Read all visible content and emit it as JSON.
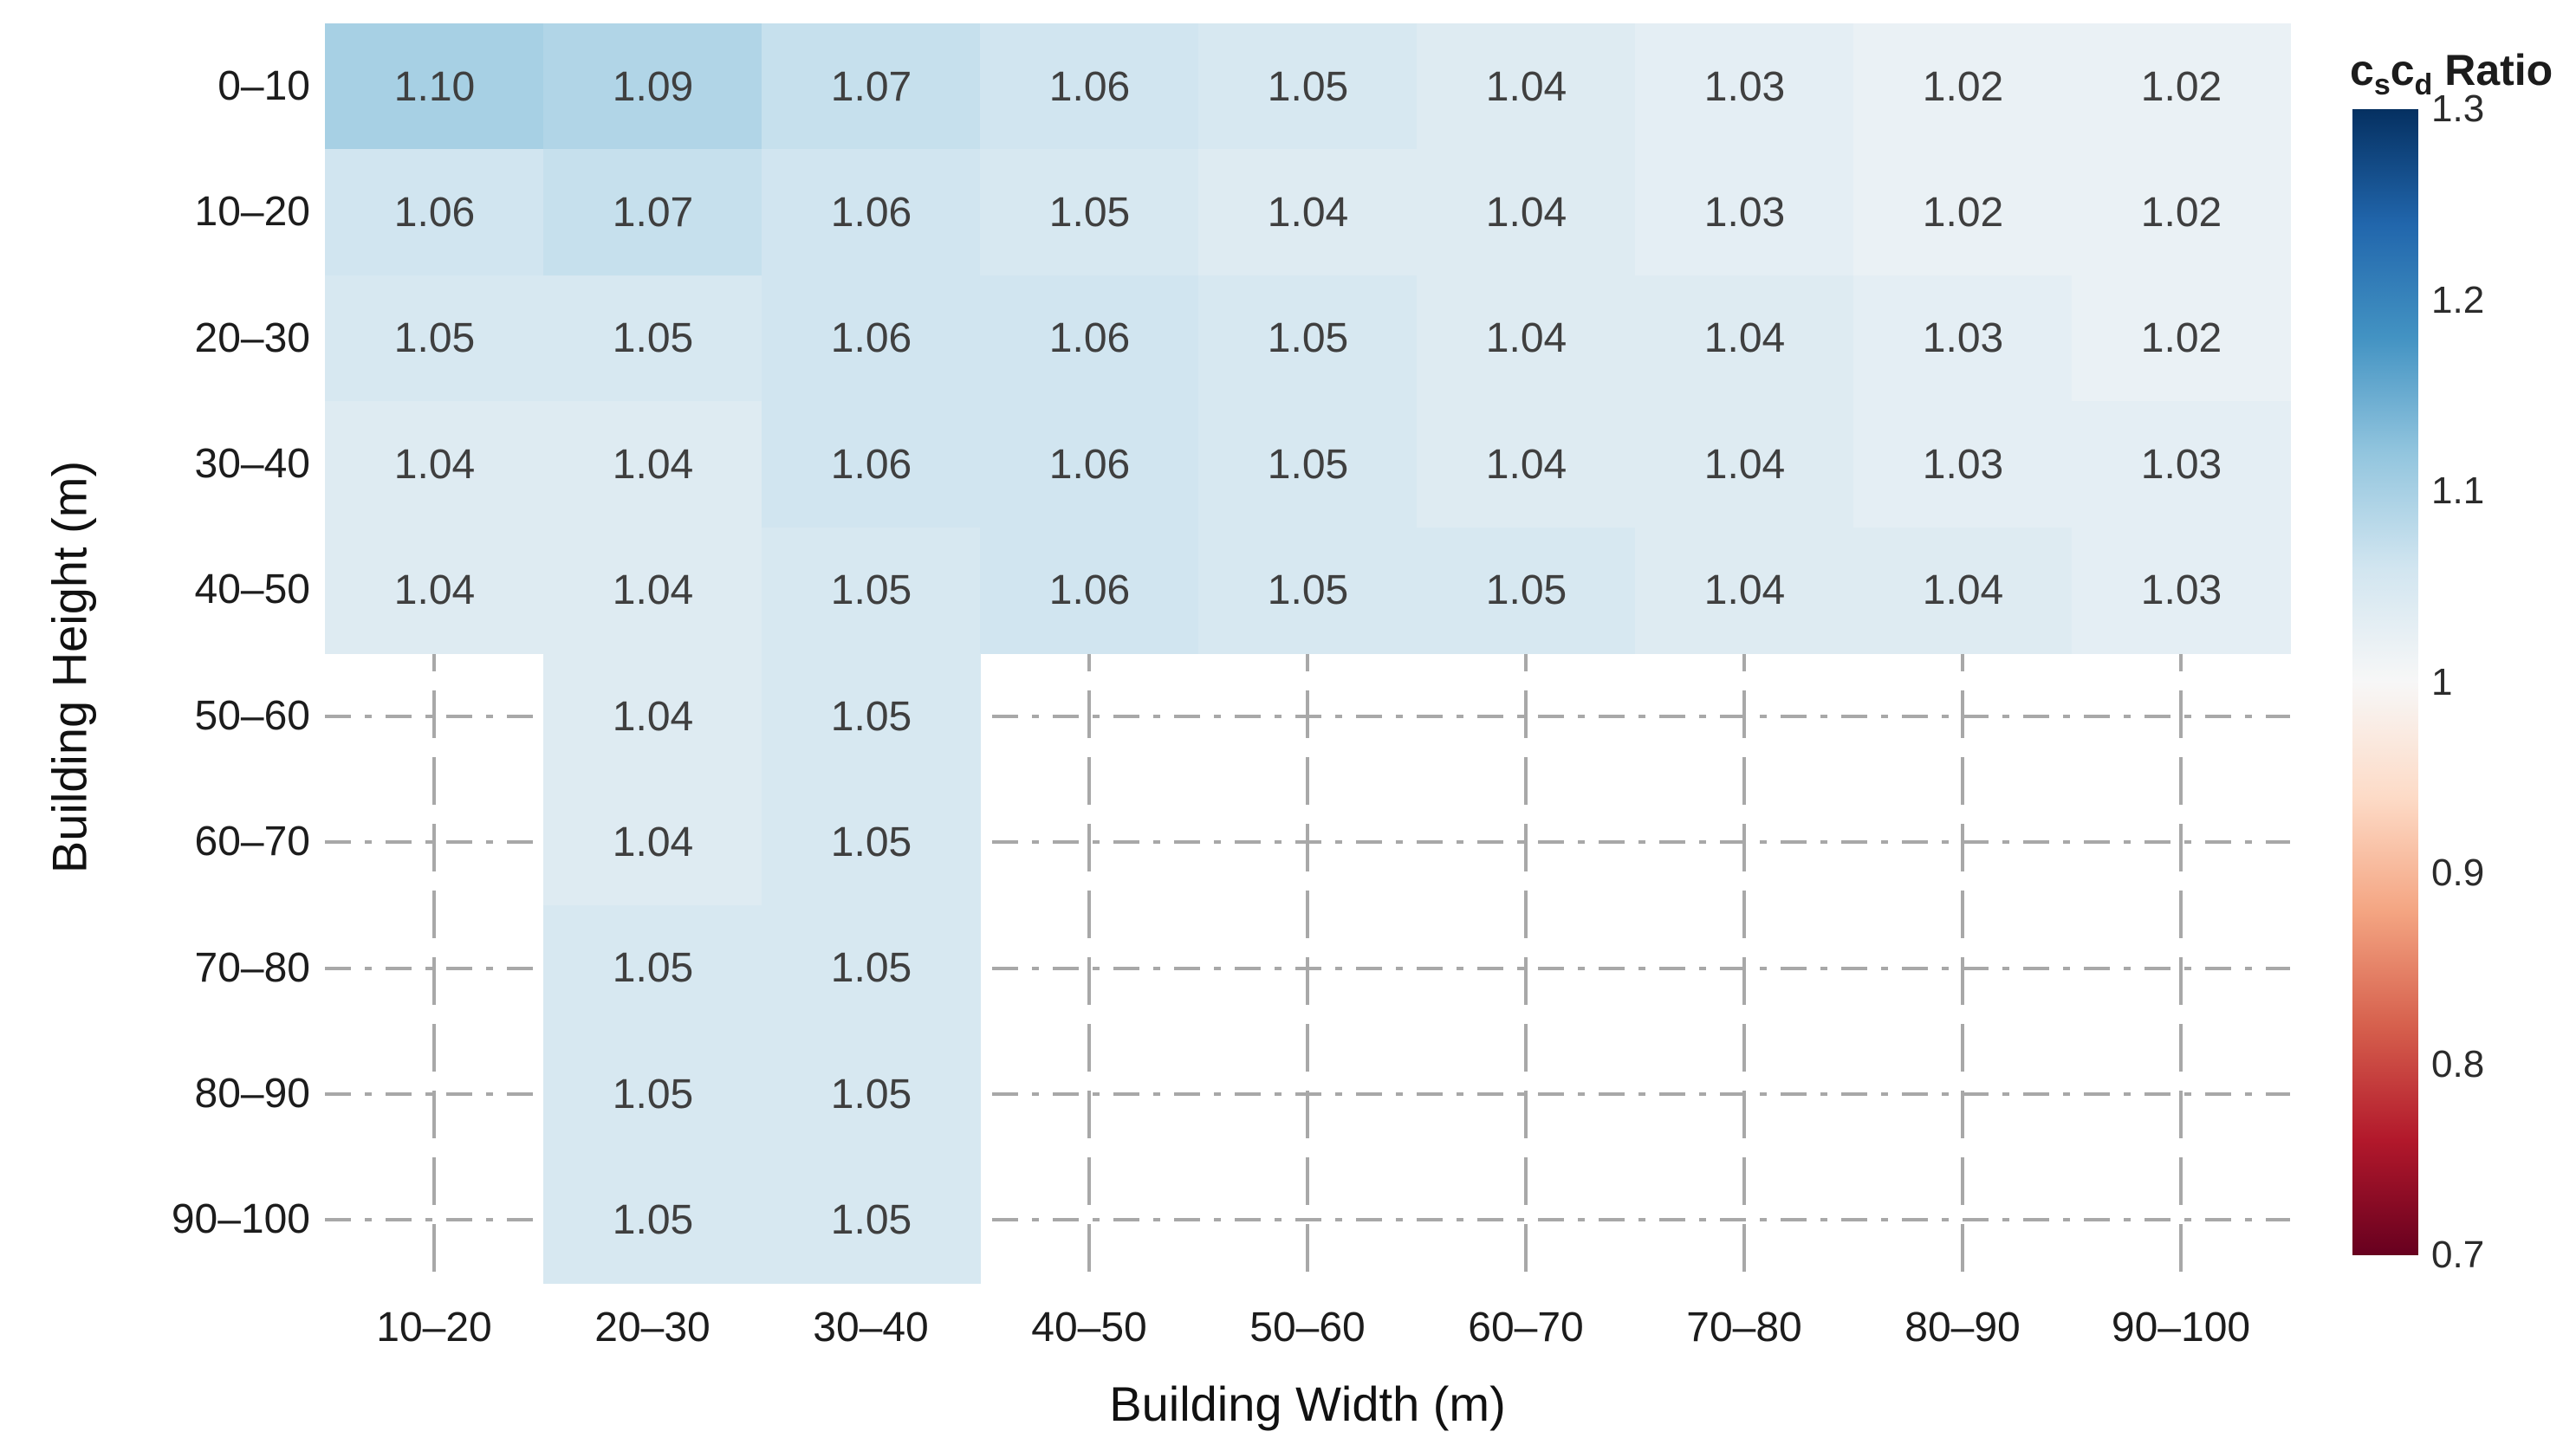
{
  "chart_data": {
    "type": "heatmap",
    "title": "",
    "xlabel": "Building Width (m)",
    "ylabel": "Building Height (m)",
    "x_categories": [
      "10–20",
      "20–30",
      "30–40",
      "40–50",
      "50–60",
      "60–70",
      "70–80",
      "80–90",
      "90–100"
    ],
    "y_categories": [
      "0–10",
      "10–20",
      "20–30",
      "30–40",
      "40–50",
      "50–60",
      "60–70",
      "70–80",
      "80–90",
      "90–100"
    ],
    "values": [
      [
        1.1,
        1.09,
        1.07,
        1.06,
        1.05,
        1.04,
        1.03,
        1.02,
        1.02
      ],
      [
        1.06,
        1.07,
        1.06,
        1.05,
        1.04,
        1.04,
        1.03,
        1.02,
        1.02
      ],
      [
        1.05,
        1.05,
        1.06,
        1.06,
        1.05,
        1.04,
        1.04,
        1.03,
        1.02
      ],
      [
        1.04,
        1.04,
        1.06,
        1.06,
        1.05,
        1.04,
        1.04,
        1.03,
        1.03
      ],
      [
        1.04,
        1.04,
        1.05,
        1.06,
        1.05,
        1.05,
        1.04,
        1.04,
        1.03
      ],
      [
        null,
        1.04,
        1.05,
        null,
        null,
        null,
        null,
        null,
        null
      ],
      [
        null,
        1.04,
        1.05,
        null,
        null,
        null,
        null,
        null,
        null
      ],
      [
        null,
        1.05,
        1.05,
        null,
        null,
        null,
        null,
        null,
        null
      ],
      [
        null,
        1.05,
        1.05,
        null,
        null,
        null,
        null,
        null,
        null
      ],
      [
        null,
        1.05,
        1.05,
        null,
        null,
        null,
        null,
        null,
        null
      ]
    ],
    "decimals": 2,
    "grid": "dashed",
    "colorbar": {
      "position": "right",
      "title": {
        "base1": "c",
        "sub1": "s",
        "base2": "c",
        "sub2": "d",
        "suffix": " Ratio"
      },
      "ticks": [
        "1.3",
        "1.2",
        "1.1",
        "1",
        "0.9",
        "0.8",
        "0.7"
      ],
      "vmin": 0.7,
      "vmax": 1.3
    },
    "colorscale_rdbu": [
      "#67001f",
      "#b2182b",
      "#d6604d",
      "#f4a582",
      "#fddbc7",
      "#f7f7f7",
      "#d1e5f0",
      "#92c5de",
      "#4393c3",
      "#2166ac",
      "#053061"
    ],
    "colors": {
      "background": "#ffffff",
      "cell_text": "#3f3f3f",
      "axis_text": "#1c1c1c",
      "grid": "#a8a8a8"
    }
  }
}
